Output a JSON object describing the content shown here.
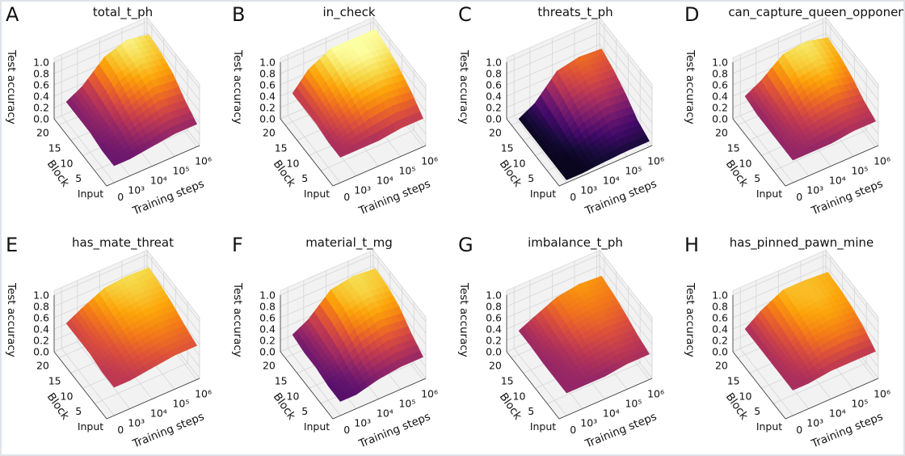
{
  "figure": {
    "colormap": "inferno",
    "pane_color": "#f2f2f2",
    "grid_color": "#d6d6d6"
  },
  "chart_data": [
    {
      "panel": "A",
      "title": "total_t_ph",
      "type": "surface",
      "xlabel": "Training steps",
      "ylabel": "Block",
      "zlabel": "Test accuracy",
      "x_ticks": [
        "0",
        "10³",
        "10⁴",
        "10⁵",
        "10⁶"
      ],
      "y_ticks": [
        "Input",
        "5",
        "10",
        "15",
        "20"
      ],
      "z_ticks": [
        "0.0",
        "0.2",
        "0.4",
        "0.6",
        "0.8",
        "1.0"
      ],
      "x": [
        0,
        1000,
        10000,
        100000,
        1000000
      ],
      "y": [
        0,
        5,
        10,
        15,
        20
      ],
      "zlim": [
        0,
        1
      ],
      "grid": true,
      "z": [
        [
          0.3,
          0.3,
          0.35,
          0.4,
          0.4
        ],
        [
          0.3,
          0.35,
          0.5,
          0.6,
          0.55
        ],
        [
          0.35,
          0.4,
          0.65,
          0.8,
          0.75
        ],
        [
          0.35,
          0.45,
          0.8,
          0.92,
          0.85
        ],
        [
          0.35,
          0.5,
          0.85,
          0.98,
          0.9
        ]
      ]
    },
    {
      "panel": "B",
      "title": "in_check",
      "type": "surface",
      "xlabel": "Training steps",
      "ylabel": "Block",
      "zlabel": "Test accuracy",
      "x_ticks": [
        "0",
        "10³",
        "10⁴",
        "10⁵",
        "10⁶"
      ],
      "y_ticks": [
        "Input",
        "5",
        "10",
        "15",
        "20"
      ],
      "z_ticks": [
        "0.0",
        "0.2",
        "0.4",
        "0.6",
        "0.8",
        "1.0"
      ],
      "x": [
        0,
        1000,
        10000,
        100000,
        1000000
      ],
      "y": [
        0,
        5,
        10,
        15,
        20
      ],
      "zlim": [
        0,
        1
      ],
      "grid": true,
      "z": [
        [
          0.45,
          0.45,
          0.45,
          0.5,
          0.5
        ],
        [
          0.45,
          0.55,
          0.7,
          0.75,
          0.7
        ],
        [
          0.5,
          0.65,
          0.85,
          0.9,
          0.85
        ],
        [
          0.5,
          0.75,
          0.95,
          1.0,
          0.95
        ],
        [
          0.5,
          0.8,
          1.0,
          1.0,
          1.0
        ]
      ]
    },
    {
      "panel": "C",
      "title": "threats_t_ph",
      "type": "surface",
      "xlabel": "Training steps",
      "ylabel": "Block",
      "zlabel": "Test accuracy",
      "x_ticks": [
        "0",
        "10³",
        "10⁴",
        "10⁵",
        "10⁶"
      ],
      "y_ticks": [
        "Input",
        "5",
        "10",
        "15",
        "20"
      ],
      "z_ticks": [
        "0.0",
        "0.2",
        "0.4",
        "0.6",
        "0.8",
        "1.0"
      ],
      "x": [
        0,
        1000,
        10000,
        100000,
        1000000
      ],
      "y": [
        0,
        5,
        10,
        15,
        20
      ],
      "zlim": [
        0,
        1
      ],
      "grid": true,
      "z": [
        [
          0.05,
          0.05,
          0.08,
          0.1,
          0.1
        ],
        [
          0.05,
          0.05,
          0.15,
          0.25,
          0.2
        ],
        [
          0.05,
          0.1,
          0.35,
          0.45,
          0.4
        ],
        [
          0.05,
          0.15,
          0.5,
          0.6,
          0.55
        ],
        [
          0.05,
          0.2,
          0.6,
          0.68,
          0.65
        ]
      ]
    },
    {
      "panel": "D",
      "title": "can_capture_queen_opponent",
      "type": "surface",
      "xlabel": "Training steps",
      "ylabel": "Block",
      "zlabel": "Test accuracy",
      "x_ticks": [
        "0",
        "10³",
        "10⁴",
        "10⁵",
        "10⁶"
      ],
      "y_ticks": [
        "Input",
        "5",
        "10",
        "15",
        "20"
      ],
      "z_ticks": [
        "0.0",
        "0.2",
        "0.4",
        "0.6",
        "0.8",
        "1.0"
      ],
      "x": [
        0,
        1000,
        10000,
        100000,
        1000000
      ],
      "y": [
        0,
        5,
        10,
        15,
        20
      ],
      "zlim": [
        0,
        1
      ],
      "grid": true,
      "z": [
        [
          0.4,
          0.4,
          0.4,
          0.45,
          0.45
        ],
        [
          0.4,
          0.45,
          0.55,
          0.6,
          0.55
        ],
        [
          0.4,
          0.5,
          0.7,
          0.8,
          0.7
        ],
        [
          0.4,
          0.55,
          0.85,
          0.9,
          0.8
        ],
        [
          0.45,
          0.6,
          0.9,
          0.95,
          0.85
        ]
      ]
    },
    {
      "panel": "E",
      "title": "has_mate_threat",
      "type": "surface",
      "xlabel": "Training steps",
      "ylabel": "Block",
      "zlabel": "Test accuracy",
      "x_ticks": [
        "0",
        "10³",
        "10⁴",
        "10⁵",
        "10⁶"
      ],
      "y_ticks": [
        "Input",
        "5",
        "10",
        "15",
        "20"
      ],
      "z_ticks": [
        "0.0",
        "0.2",
        "0.4",
        "0.6",
        "0.8",
        "1.0"
      ],
      "x": [
        0,
        1000,
        10000,
        100000,
        1000000
      ],
      "y": [
        0,
        5,
        10,
        15,
        20
      ],
      "zlim": [
        0,
        1
      ],
      "grid": true,
      "z": [
        [
          0.5,
          0.5,
          0.55,
          0.6,
          0.6
        ],
        [
          0.5,
          0.55,
          0.65,
          0.7,
          0.68
        ],
        [
          0.55,
          0.6,
          0.75,
          0.8,
          0.78
        ],
        [
          0.55,
          0.65,
          0.82,
          0.88,
          0.85
        ],
        [
          0.55,
          0.7,
          0.88,
          0.92,
          0.9
        ]
      ]
    },
    {
      "panel": "F",
      "title": "material_t_mg",
      "type": "surface",
      "xlabel": "Training steps",
      "ylabel": "Block",
      "zlabel": "Test accuracy",
      "x_ticks": [
        "0",
        "10³",
        "10⁴",
        "10⁵",
        "10⁶"
      ],
      "y_ticks": [
        "Input",
        "5",
        "10",
        "15",
        "20"
      ],
      "z_ticks": [
        "0.0",
        "0.2",
        "0.4",
        "0.6",
        "0.8",
        "1.0"
      ],
      "x": [
        0,
        1000,
        10000,
        100000,
        1000000
      ],
      "y": [
        0,
        5,
        10,
        15,
        20
      ],
      "zlim": [
        0,
        1
      ],
      "grid": true,
      "z": [
        [
          0.25,
          0.25,
          0.35,
          0.4,
          0.4
        ],
        [
          0.25,
          0.3,
          0.5,
          0.6,
          0.55
        ],
        [
          0.3,
          0.4,
          0.7,
          0.8,
          0.75
        ],
        [
          0.3,
          0.45,
          0.82,
          0.9,
          0.85
        ],
        [
          0.35,
          0.5,
          0.85,
          0.92,
          0.88
        ]
      ]
    },
    {
      "panel": "G",
      "title": "imbalance_t_ph",
      "type": "surface",
      "xlabel": "Training steps",
      "ylabel": "Block",
      "zlabel": "Test accuracy",
      "x_ticks": [
        "0",
        "10³",
        "10⁴",
        "10⁵",
        "10⁶"
      ],
      "y_ticks": [
        "Input",
        "5",
        "10",
        "15",
        "20"
      ],
      "z_ticks": [
        "0.0",
        "0.2",
        "0.4",
        "0.6",
        "0.8",
        "1.0"
      ],
      "x": [
        0,
        1000,
        10000,
        100000,
        1000000
      ],
      "y": [
        0,
        5,
        10,
        15,
        20
      ],
      "zlim": [
        0,
        1
      ],
      "grid": true,
      "z": [
        [
          0.4,
          0.4,
          0.4,
          0.45,
          0.45
        ],
        [
          0.4,
          0.42,
          0.5,
          0.55,
          0.52
        ],
        [
          0.4,
          0.45,
          0.6,
          0.65,
          0.62
        ],
        [
          0.42,
          0.5,
          0.68,
          0.72,
          0.7
        ],
        [
          0.42,
          0.55,
          0.72,
          0.78,
          0.75
        ]
      ]
    },
    {
      "panel": "H",
      "title": "has_pinned_pawn_mine",
      "type": "surface",
      "xlabel": "Training steps",
      "ylabel": "Block",
      "zlabel": "Test accuracy",
      "x_ticks": [
        "0",
        "10³",
        "10⁴",
        "10⁵",
        "10⁶"
      ],
      "y_ticks": [
        "Input",
        "5",
        "10",
        "15",
        "20"
      ],
      "z_ticks": [
        "0.0",
        "0.2",
        "0.4",
        "0.6",
        "0.8",
        "1.0"
      ],
      "x": [
        0,
        1000,
        10000,
        100000,
        1000000
      ],
      "y": [
        0,
        5,
        10,
        15,
        20
      ],
      "zlim": [
        0,
        1
      ],
      "grid": true,
      "z": [
        [
          0.45,
          0.45,
          0.5,
          0.5,
          0.5
        ],
        [
          0.45,
          0.5,
          0.65,
          0.7,
          0.65
        ],
        [
          0.45,
          0.55,
          0.75,
          0.8,
          0.75
        ],
        [
          0.45,
          0.6,
          0.82,
          0.85,
          0.8
        ],
        [
          0.45,
          0.65,
          0.85,
          0.85,
          0.82
        ]
      ]
    }
  ]
}
